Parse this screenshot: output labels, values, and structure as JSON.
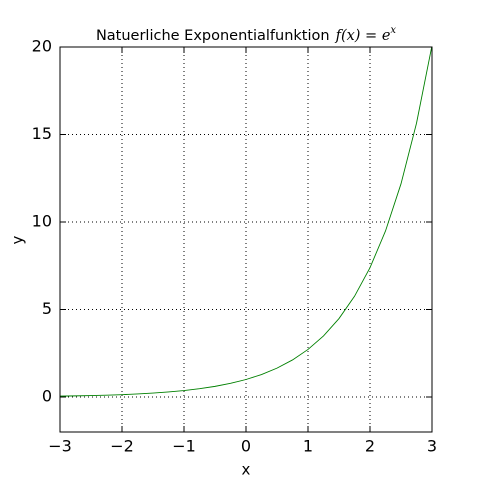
{
  "chart_data": {
    "type": "line",
    "title": "Natuerliche Exponentialfunktion",
    "formula": {
      "base": "f(x) = e",
      "exponent": "x"
    },
    "x_label": "x",
    "y_label": "y",
    "x": [
      -3,
      -2.75,
      -2.5,
      -2.25,
      -2,
      -1.75,
      -1.5,
      -1.25,
      -1,
      -0.75,
      -0.5,
      -0.25,
      0,
      0.25,
      0.5,
      0.75,
      1,
      1.25,
      1.5,
      1.75,
      2,
      2.25,
      2.5,
      2.75,
      3
    ],
    "series": [
      {
        "color": "#008000",
        "values": [
          0.05,
          0.064,
          0.082,
          0.105,
          0.135,
          0.174,
          0.223,
          0.287,
          0.368,
          0.472,
          0.607,
          0.779,
          1,
          1.284,
          1.649,
          2.117,
          2.718,
          3.49,
          4.482,
          5.755,
          7.389,
          9.488,
          12.182,
          15.643,
          20.086
        ]
      }
    ],
    "xlim": [
      -3,
      3
    ],
    "ylim": [
      -2,
      20
    ],
    "xticks": [
      {
        "value": -3,
        "label": "−3"
      },
      {
        "value": -2,
        "label": "−2"
      },
      {
        "value": -1,
        "label": "−1"
      },
      0,
      1,
      2,
      3
    ],
    "yticks": [
      0,
      5,
      10,
      15,
      20
    ],
    "grid": true
  }
}
